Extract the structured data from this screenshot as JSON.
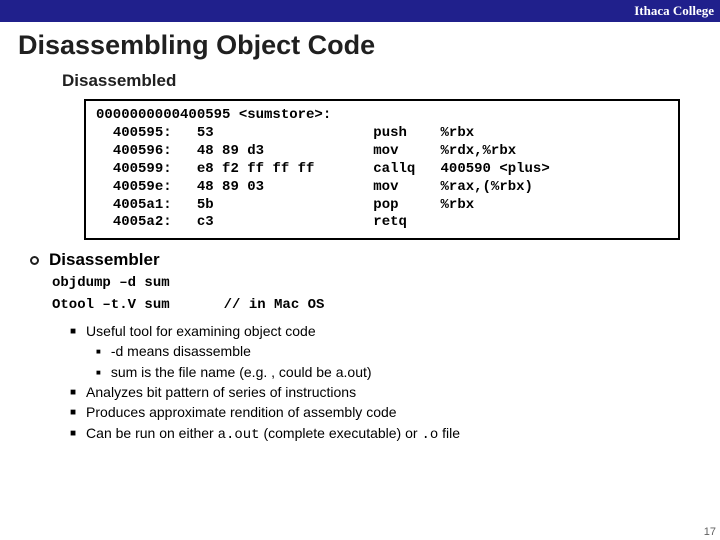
{
  "header": {
    "org": "Ithaca College"
  },
  "title": "Disassembling Object Code",
  "subtitle": "Disassembled",
  "codebox": {
    "text_color": "#000000",
    "border_color": "#000000",
    "background_color": "#ffffff",
    "font": "Courier New",
    "fontsize": 14,
    "line1": "0000000000400595 <sumstore>:",
    "rows": [
      {
        "addr": "400595:",
        "bytes": "53",
        "op": "push",
        "args": "%rbx"
      },
      {
        "addr": "400596:",
        "bytes": "48 89 d3",
        "op": "mov",
        "args": "%rdx,%rbx"
      },
      {
        "addr": "400599:",
        "bytes": "e8 f2 ff ff ff",
        "op": "callq",
        "args": "400590 <plus>"
      },
      {
        "addr": "40059e:",
        "bytes": "48 89 03",
        "op": "mov",
        "args": "%rax,(%rbx)"
      },
      {
        "addr": "4005a1:",
        "bytes": "5b",
        "op": "pop",
        "args": "%rbx"
      },
      {
        "addr": "4005a2:",
        "bytes": "c3",
        "op": "retq",
        "args": ""
      }
    ]
  },
  "disassembler": {
    "label": "Disassembler",
    "cmd1": "objdump –d sum",
    "cmd2": "Otool –t.V sum",
    "cmd2_comment": "// in Mac OS",
    "bullets": {
      "b1": "Useful tool for examining object code",
      "b1a": "-d means disassemble",
      "b1b": "sum is the file name (e.g. , could be a.out)",
      "b2": "Analyzes bit pattern of series of instructions",
      "b3": "Produces approximate rendition of assembly code",
      "b4_pre": "Can be run on either ",
      "b4_code1": "a.out",
      "b4_mid": " (complete executable) or ",
      "b4_code2": ".o",
      "b4_post": " file"
    }
  },
  "pagenum": "17",
  "colors": {
    "header_bg": "#20208c",
    "header_fg": "#ffffff",
    "body_bg": "#ffffff",
    "text": "#202020"
  }
}
